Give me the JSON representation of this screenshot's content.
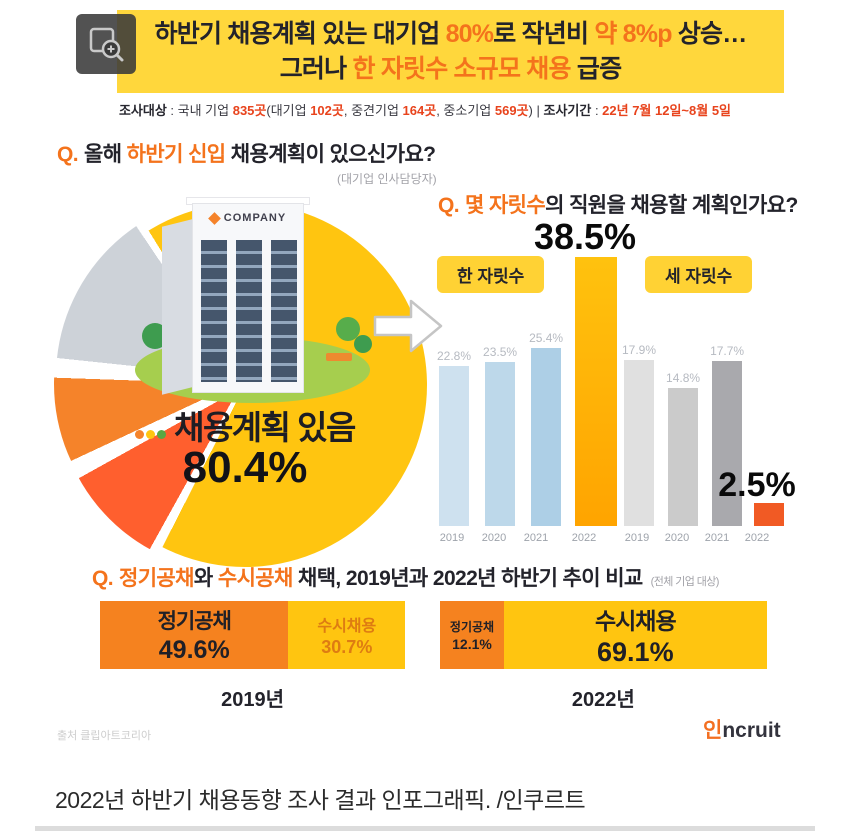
{
  "icons": {
    "zoom_button": "magnifier-zoom",
    "arrow": "block-arrow-right",
    "building": "company-building-illustration",
    "flowers": "flower-dots"
  },
  "palette": {
    "header_bg": "#FFD73C",
    "accent_orange": "#F4731C",
    "red_numbers": "#E8431C",
    "dark_text": "#23232B",
    "pie_yellow": "#FFC510",
    "pie_gray": "#CDD2D8",
    "pie_orange": "#F5832A",
    "pie_deep_orange": "#FF5F2E",
    "bar_blue": "#BDD8EA",
    "bar_gold": "#FFB700",
    "bar_gray": "#CBCBCB",
    "bar_orange_small": "#F15A24",
    "hbar_orange": "#F5821F",
    "hbar_yellow": "#FFC510"
  },
  "header": {
    "l1a": "하반기 채용계획 있는 대기업 ",
    "l1b": "80%",
    "l1c": "로 작년비 ",
    "l1d": "약 8%p",
    "l1e": " 상승…",
    "l2a": "그러나 ",
    "l2b": "한 자릿수 소규모 채용",
    "l2c": " 급증"
  },
  "survey": {
    "label1": "조사대상",
    "t1": " : 국내 기업 ",
    "n1": "835곳",
    "t2": "(대기업 ",
    "n2": "102곳",
    "t3": ", 중견기업 ",
    "n3": "164곳",
    "t4": ", 중소기업 ",
    "n4": "569곳",
    "t5": ") | ",
    "label2": "조사기간",
    "t6": " : ",
    "n5": "22년 7월 12일~8월 5일"
  },
  "q1": {
    "q": "Q.",
    "a": "올해 ",
    "b": "하반기 신입",
    "c": " 채용계획이 있으신가요?",
    "note": "(대기업 인사담당자)"
  },
  "q2": {
    "q": "Q.",
    "b": "몇 자릿수",
    "c": "의 직원을 채용할 계획인가요?"
  },
  "q3": {
    "q": "Q.",
    "b1": "정기공채",
    "m": "와 ",
    "b2": "수시공채",
    "rest": " 채택, 2019년과 2022년 하반기 추이 비교",
    "note": "(전체 기업 대상)"
  },
  "building": {
    "sign": "COMPANY"
  },
  "chart_data": [
    {
      "type": "pie",
      "question": "올해 하반기 신입 채용계획이 있으신가요?",
      "respondents": "(대기업 인사담당자)",
      "slices": [
        {
          "label": "채용계획 있음",
          "value": 80.4
        }
      ]
    },
    {
      "type": "bar",
      "question": "몇 자릿수의 직원을 채용할 계획인가요?",
      "unit": "%",
      "categories": [
        "2019",
        "2020",
        "2021",
        "2022"
      ],
      "series": [
        {
          "name": "한 자릿수",
          "values": [
            22.8,
            23.5,
            25.4,
            38.5
          ]
        },
        {
          "name": "세 자릿수",
          "values": [
            17.9,
            14.8,
            17.7,
            2.5
          ]
        }
      ]
    },
    {
      "type": "bar",
      "subtype": "horizontal-stacked",
      "question": "정기공채와 수시공채 채택, 2019년과 2022년 하반기 추이 비교",
      "respondents": "(전체 기업 대상)",
      "unit": "%",
      "categories": [
        "2019년",
        "2022년"
      ],
      "series": [
        {
          "name": "정기공채",
          "values": [
            49.6,
            12.1
          ]
        },
        {
          "name": "수시채용",
          "values": [
            30.7,
            69.1
          ]
        }
      ]
    }
  ],
  "footer": {
    "source": "출처 클립아트코리아",
    "logo_symbol": "인",
    "logo_text": "ncruit"
  },
  "caption": "2022년 하반기 채용동향 조사 결과 인포그래픽. /인쿠르트"
}
